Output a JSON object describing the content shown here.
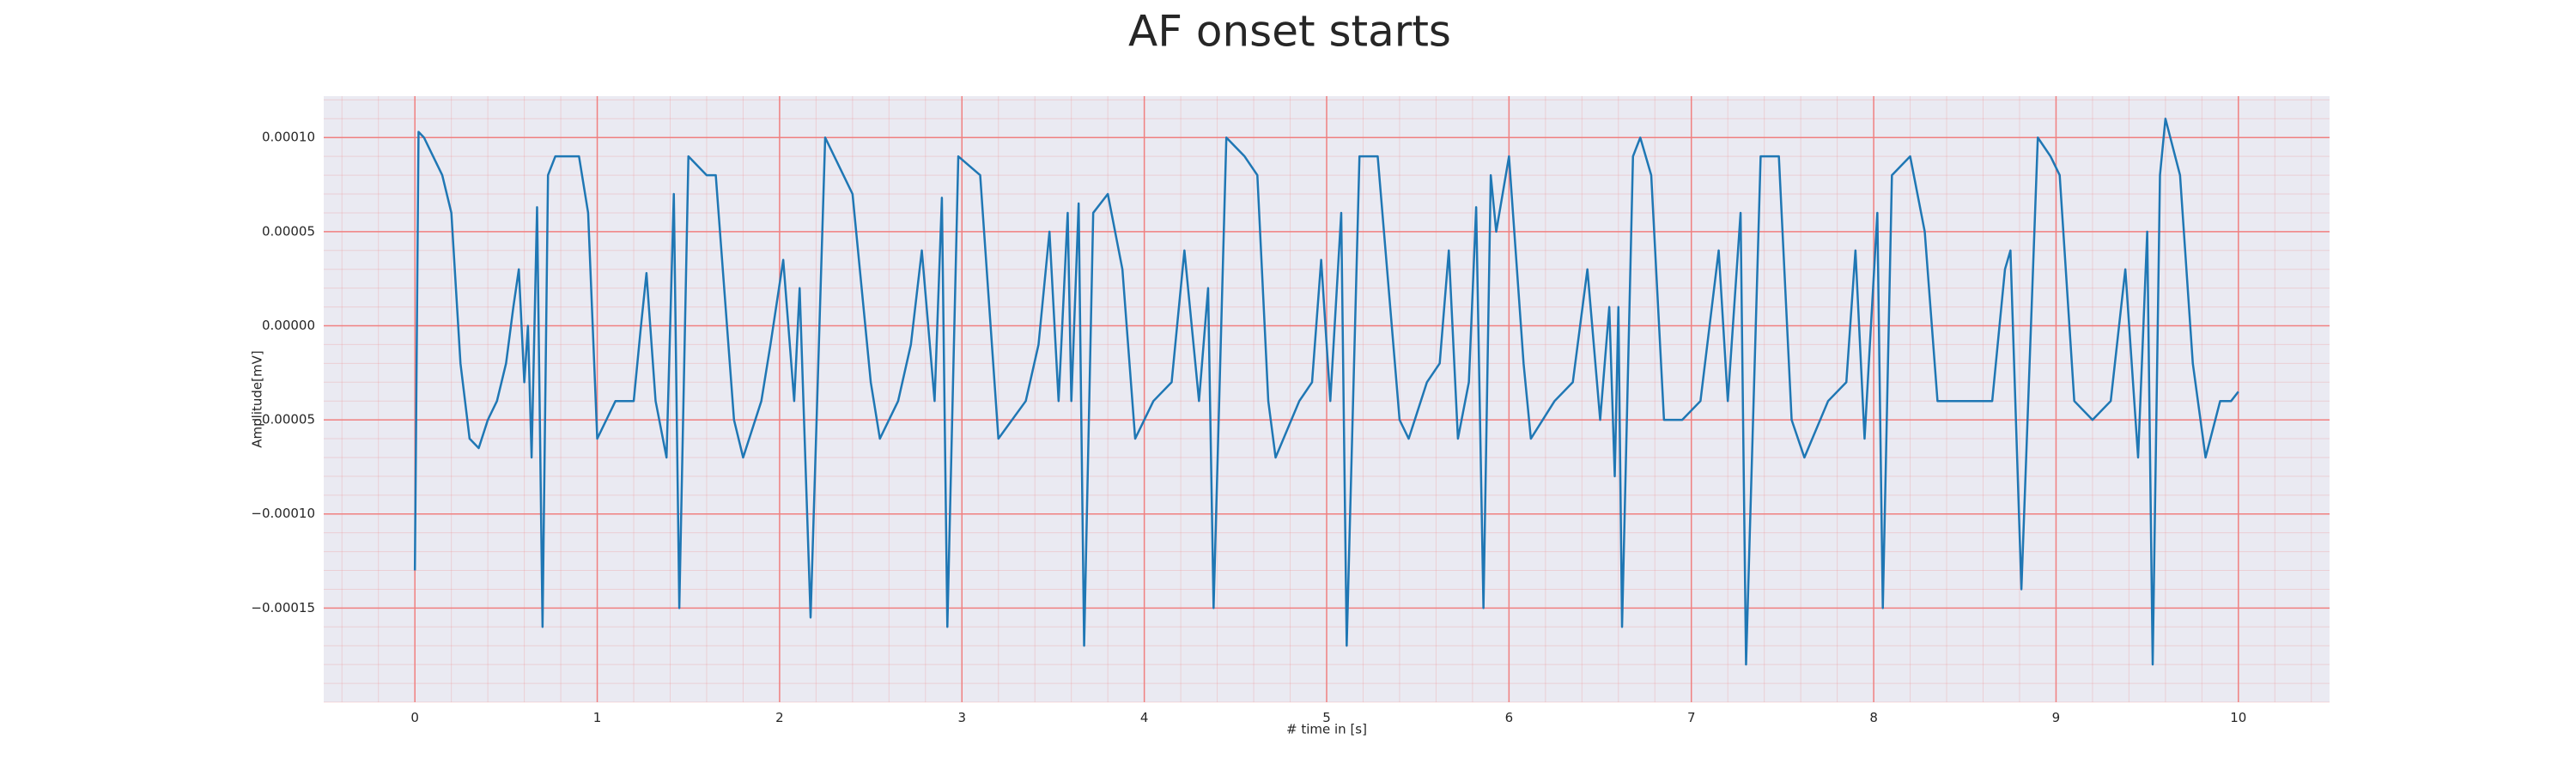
{
  "chart_data": {
    "type": "line",
    "title": "AF onset starts",
    "x_label": "# time in [s]",
    "y_label": "Amplitude[mV]",
    "xlim": [
      -0.5,
      10.5
    ],
    "ylim": [
      -0.0002,
      0.000122
    ],
    "xticks": [
      0,
      1,
      2,
      3,
      4,
      5,
      6,
      7,
      8,
      9,
      10
    ],
    "yticks": [
      {
        "value": -0.00015,
        "label": "−0.00015"
      },
      {
        "value": -0.0001,
        "label": "−0.00010"
      },
      {
        "value": -5e-05,
        "label": "−0.00005"
      },
      {
        "value": 0,
        "label": "0.00000"
      },
      {
        "value": 5e-05,
        "label": "0.00005"
      },
      {
        "value": 0.0001,
        "label": "0.00010"
      }
    ],
    "grid": true,
    "background": "#eaeaf2",
    "grid_color": "#f08080",
    "series": [
      {
        "color": "#1f77b4",
        "x": [
          0,
          0.02,
          0.05,
          0.1,
          0.15,
          0.2,
          0.25,
          0.3,
          0.35,
          0.4,
          0.45,
          0.5,
          0.54,
          0.57,
          0.6,
          0.62,
          0.64,
          0.67,
          0.7,
          0.73,
          0.77,
          0.8,
          0.84,
          0.9,
          0.95,
          1.0,
          1.05,
          1.1,
          1.2,
          1.24,
          1.27,
          1.32,
          1.38,
          1.42,
          1.45,
          1.5,
          1.6,
          1.65,
          1.75,
          1.8,
          1.9,
          1.95,
          2.02,
          2.08,
          2.11,
          2.17,
          2.25,
          2.35,
          2.4,
          2.5,
          2.55,
          2.65,
          2.72,
          2.78,
          2.85,
          2.89,
          2.92,
          2.98,
          3.1,
          3.2,
          3.35,
          3.42,
          3.48,
          3.53,
          3.58,
          3.6,
          3.64,
          3.67,
          3.72,
          3.8,
          3.88,
          3.95,
          4.05,
          4.15,
          4.22,
          4.3,
          4.35,
          4.38,
          4.45,
          4.55,
          4.62,
          4.68,
          4.72,
          4.85,
          4.92,
          4.97,
          5.02,
          5.08,
          5.11,
          5.18,
          5.28,
          5.4,
          5.45,
          5.55,
          5.62,
          5.67,
          5.72,
          5.78,
          5.82,
          5.86,
          5.9,
          5.93,
          6.0,
          6.08,
          6.12,
          6.25,
          6.35,
          6.43,
          6.5,
          6.55,
          6.58,
          6.6,
          6.62,
          6.68,
          6.72,
          6.78,
          6.85,
          6.95,
          7.05,
          7.15,
          7.2,
          7.27,
          7.3,
          7.38,
          7.48,
          7.55,
          7.62,
          7.75,
          7.85,
          7.9,
          7.95,
          8.02,
          8.05,
          8.1,
          8.2,
          8.28,
          8.35,
          8.55,
          8.65,
          8.72,
          8.75,
          8.81,
          8.9,
          8.97,
          9.02,
          9.1,
          9.2,
          9.3,
          9.38,
          9.45,
          9.5,
          9.53,
          9.57,
          9.6,
          9.68,
          9.75,
          9.82,
          9.9,
          9.96,
          10.0
        ],
        "values": [
          -0.00013,
          0.000103,
          0.0001,
          9e-05,
          8e-05,
          6e-05,
          -2e-05,
          -6e-05,
          -6.5e-05,
          -5e-05,
          -4e-05,
          -2e-05,
          1e-05,
          3e-05,
          -3e-05,
          0.0,
          -7e-05,
          6.3e-05,
          -0.00016,
          8e-05,
          9e-05,
          9e-05,
          9e-05,
          9e-05,
          6e-05,
          -6e-05,
          -5e-05,
          -4e-05,
          -4e-05,
          0.0,
          2.8e-05,
          -4e-05,
          -7e-05,
          7e-05,
          -0.00015,
          9e-05,
          8e-05,
          8e-05,
          -5e-05,
          -7e-05,
          -4e-05,
          -1e-05,
          3.5e-05,
          -4e-05,
          2e-05,
          -0.000155,
          0.0001,
          8e-05,
          7e-05,
          -3e-05,
          -6e-05,
          -4e-05,
          -1e-05,
          4e-05,
          -4e-05,
          6.8e-05,
          -0.00016,
          9e-05,
          8e-05,
          -6e-05,
          -4e-05,
          -1e-05,
          5e-05,
          -4e-05,
          6e-05,
          -4e-05,
          6.5e-05,
          -0.00017,
          6e-05,
          7e-05,
          3e-05,
          -6e-05,
          -4e-05,
          -3e-05,
          4e-05,
          -4e-05,
          2e-05,
          -0.00015,
          0.0001,
          9e-05,
          8e-05,
          -4e-05,
          -7e-05,
          -4e-05,
          -3e-05,
          3.5e-05,
          -4e-05,
          6e-05,
          -0.00017,
          9e-05,
          9e-05,
          -5e-05,
          -6e-05,
          -3e-05,
          -2e-05,
          4e-05,
          -6e-05,
          -3e-05,
          6.3e-05,
          -0.00015,
          8e-05,
          5e-05,
          9e-05,
          -2e-05,
          -6e-05,
          -4e-05,
          -3e-05,
          3e-05,
          -5e-05,
          1e-05,
          -8e-05,
          1e-05,
          -0.00016,
          9e-05,
          0.0001,
          8e-05,
          -5e-05,
          -5e-05,
          -4e-05,
          4e-05,
          -4e-05,
          6e-05,
          -0.00018,
          9e-05,
          9e-05,
          -5e-05,
          -7e-05,
          -4e-05,
          -3e-05,
          4e-05,
          -6e-05,
          6e-05,
          -0.00015,
          8e-05,
          9e-05,
          5e-05,
          -4e-05,
          -4e-05,
          -4e-05,
          3e-05,
          4e-05,
          -0.00014,
          0.0001,
          9e-05,
          8e-05,
          -4e-05,
          -5e-05,
          -4e-05,
          3e-05,
          -7e-05,
          5e-05,
          -0.00018,
          8e-05,
          0.00011,
          8e-05,
          -2e-05,
          -7e-05,
          -4e-05,
          -4e-05,
          -3.5e-05
        ]
      }
    ]
  }
}
